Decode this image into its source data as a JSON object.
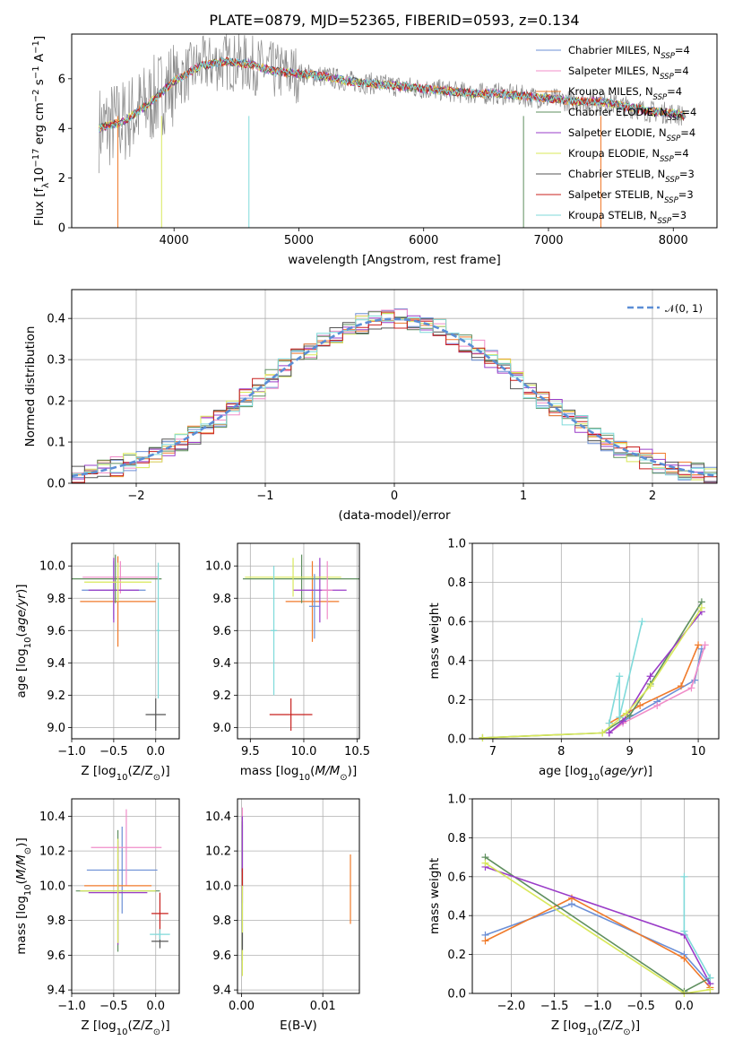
{
  "page": {
    "title": "PLATE=0879, MJD=52365, FIBERID=0593, z=0.134"
  },
  "chart_data": [
    {
      "id": "spectrum",
      "type": "line",
      "xlabel": "wavelength [Angstrom, rest frame]",
      "ylabel": "Flux [f_λ 10^-17 erg cm^-2 s^-1 A^-1]",
      "xlim": [
        3180,
        8350
      ],
      "ylim": [
        0,
        7.8
      ],
      "xticks": [
        4000,
        5000,
        6000,
        7000,
        8000
      ],
      "yticks": [
        0,
        2,
        4,
        6
      ],
      "grid": false,
      "legend_position": "right",
      "series": [
        {
          "name": "Chabrier MILES, N_SSP=4",
          "color": "#6b8fd6"
        },
        {
          "name": "Salpeter MILES, N_SSP=4",
          "color": "#f08cc8"
        },
        {
          "name": "Kroupa MILES, N_SSP=4",
          "color": "#f07a2a"
        },
        {
          "name": "Chabrier ELODIE, N_SSP=4",
          "color": "#5f8f5f"
        },
        {
          "name": "Salpeter ELODIE, N_SSP=4",
          "color": "#9a3cc8"
        },
        {
          "name": "Kroupa ELODIE, N_SSP=4",
          "color": "#d8e85a"
        },
        {
          "name": "Chabrier STELIB, N_SSP=3",
          "color": "#555555"
        },
        {
          "name": "Salpeter STELIB, N_SSP=3",
          "color": "#c8201e"
        },
        {
          "name": "Kroupa STELIB, N_SSP=3",
          "color": "#7fdada"
        }
      ],
      "approx_model": {
        "x": [
          3400,
          3600,
          3800,
          4000,
          4200,
          4400,
          4600,
          4800,
          5000,
          5200,
          5400,
          5600,
          5800,
          6000,
          6200,
          6400,
          6600,
          6800,
          7000,
          7200,
          7400,
          7600,
          7800,
          8000,
          8100
        ],
        "y": [
          4.0,
          4.3,
          5.0,
          5.9,
          6.5,
          6.7,
          6.6,
          6.3,
          6.2,
          6.1,
          5.9,
          5.8,
          5.7,
          5.6,
          5.5,
          5.4,
          5.4,
          5.3,
          5.2,
          5.1,
          5.1,
          4.9,
          4.7,
          4.6,
          4.5
        ]
      }
    },
    {
      "id": "residuals",
      "type": "line",
      "xlabel": "(data-model)/error",
      "ylabel": "Normed distribution",
      "xlim": [
        -2.5,
        2.5
      ],
      "ylim": [
        0,
        0.47
      ],
      "xticks": [
        -2,
        -1,
        0,
        1,
        2
      ],
      "yticks": [
        0.0,
        0.1,
        0.2,
        0.3,
        0.4
      ],
      "grid": true,
      "legend_position": "top-right",
      "legend": [
        "𝒩(0, 1)"
      ],
      "normal_color": "#5b8ed6"
    },
    {
      "id": "age_vs_Z",
      "type": "scatter",
      "xlabel": "Z [log10(Z/Z☉)]",
      "ylabel": "age [log10(age/yr)]",
      "xlim": [
        -1.0,
        0.28
      ],
      "ylim": [
        8.93,
        10.14
      ],
      "xticks": [
        -1.0,
        -0.5,
        0.0
      ],
      "yticks": [
        9.0,
        9.2,
        9.4,
        9.6,
        9.8,
        10.0
      ],
      "grid": true,
      "points": [
        {
          "x": -0.5,
          "y": 9.85,
          "xerr": 0.38,
          "yerr": 0.18,
          "series": 0
        },
        {
          "x": -0.42,
          "y": 9.93,
          "xerr": 0.45,
          "yerr": 0.1,
          "series": 1
        },
        {
          "x": -0.45,
          "y": 9.78,
          "xerr": 0.45,
          "yerr": 0.28,
          "series": 2
        },
        {
          "x": -0.48,
          "y": 9.92,
          "xerr": 0.55,
          "yerr": 0.15,
          "series": 3
        },
        {
          "x": -0.5,
          "y": 9.85,
          "xerr": 0.3,
          "yerr": 0.2,
          "series": 4
        },
        {
          "x": -0.45,
          "y": 9.9,
          "xerr": 0.4,
          "yerr": 0.12,
          "series": 5
        },
        {
          "x": 0.0,
          "y": 9.08,
          "xerr": 0.12,
          "yerr": 0.1,
          "series": 6
        },
        {
          "x": 0.03,
          "y": 9.6,
          "xerr": 0.02,
          "yerr": 0.42,
          "series": 8
        }
      ]
    },
    {
      "id": "age_vs_mass",
      "type": "scatter",
      "xlabel": "mass [log10(M/M☉)]",
      "ylabel": "",
      "xlim": [
        9.38,
        10.52
      ],
      "ylim": [
        8.93,
        10.14
      ],
      "xticks": [
        9.5,
        10.0,
        10.5
      ],
      "yticks": [
        9.0,
        9.2,
        9.4,
        9.6,
        9.8,
        10.0
      ],
      "grid": true,
      "points": [
        {
          "x": 10.08,
          "y": 9.78,
          "xerr": 0.25,
          "yerr": 0.25,
          "series": 2
        },
        {
          "x": 9.98,
          "y": 9.92,
          "xerr": 0.55,
          "yerr": 0.15,
          "series": 3
        },
        {
          "x": 10.15,
          "y": 9.85,
          "xerr": 0.25,
          "yerr": 0.2,
          "series": 4
        },
        {
          "x": 9.9,
          "y": 9.93,
          "xerr": 0.45,
          "yerr": 0.12,
          "series": 5
        },
        {
          "x": 9.88,
          "y": 9.08,
          "xerr": 0.2,
          "yerr": 0.1,
          "series": 7
        },
        {
          "x": 9.72,
          "y": 9.6,
          "xerr": 0.03,
          "yerr": 0.4,
          "series": 8
        },
        {
          "x": 10.22,
          "y": 9.85,
          "xerr": 0.05,
          "yerr": 0.18,
          "series": 1
        },
        {
          "x": 10.1,
          "y": 9.75,
          "xerr": 0.05,
          "yerr": 0.2,
          "series": 0
        }
      ]
    },
    {
      "id": "massweight_vs_age",
      "type": "line",
      "xlabel": "age [log10(age/yr)]",
      "ylabel": "mass weight",
      "xlim": [
        6.7,
        10.3
      ],
      "ylim": [
        0.0,
        1.0
      ],
      "xticks": [
        7,
        8,
        9,
        10
      ],
      "yticks": [
        0.0,
        0.2,
        0.4,
        0.6,
        0.8,
        1.0
      ],
      "grid": true,
      "series": [
        {
          "series": 0,
          "x": [
            8.7,
            8.9,
            9.4,
            9.95,
            10.05
          ],
          "y": [
            0.03,
            0.09,
            0.19,
            0.3,
            0.46
          ]
        },
        {
          "series": 1,
          "x": [
            8.7,
            8.9,
            9.4,
            9.9,
            10.1
          ],
          "y": [
            0.03,
            0.08,
            0.17,
            0.26,
            0.48
          ]
        },
        {
          "series": 2,
          "x": [
            8.7,
            9.15,
            9.75,
            10.0
          ],
          "y": [
            0.08,
            0.17,
            0.27,
            0.48
          ]
        },
        {
          "series": 3,
          "x": [
            6.85,
            8.6,
            9.0,
            9.3,
            10.05
          ],
          "y": [
            0.005,
            0.03,
            0.12,
            0.28,
            0.7
          ]
        },
        {
          "series": 4,
          "x": [
            8.7,
            8.9,
            9.3,
            10.05
          ],
          "y": [
            0.03,
            0.09,
            0.32,
            0.65
          ]
        },
        {
          "series": 5,
          "x": [
            6.85,
            8.6,
            8.95,
            9.3,
            10.05
          ],
          "y": [
            0.005,
            0.03,
            0.13,
            0.27,
            0.67
          ]
        },
        {
          "series": 8,
          "x": [
            8.7,
            8.85,
            8.85,
            9.18
          ],
          "y": [
            0.08,
            0.32,
            0.11,
            0.6
          ]
        }
      ]
    },
    {
      "id": "mass_vs_Z",
      "type": "scatter",
      "xlabel": "Z [log10(Z/Z☉)]",
      "ylabel": "mass [log10(M/M☉)]",
      "xlim": [
        -1.0,
        0.28
      ],
      "ylim": [
        9.38,
        10.5
      ],
      "xticks": [
        -1.0,
        -0.5,
        0.0
      ],
      "yticks": [
        9.4,
        9.6,
        9.8,
        10.0,
        10.2,
        10.4
      ],
      "grid": true,
      "points": [
        {
          "x": -0.4,
          "y": 10.09,
          "xerr": 0.42,
          "yerr": 0.25,
          "series": 0
        },
        {
          "x": -0.35,
          "y": 10.22,
          "xerr": 0.42,
          "yerr": 0.22,
          "series": 1
        },
        {
          "x": -0.45,
          "y": 10.0,
          "xerr": 0.4,
          "yerr": 0.15,
          "series": 2
        },
        {
          "x": -0.45,
          "y": 9.97,
          "xerr": 0.5,
          "yerr": 0.35,
          "series": 3
        },
        {
          "x": -0.45,
          "y": 9.96,
          "xerr": 0.35,
          "yerr": 0.3,
          "series": 4
        },
        {
          "x": -0.45,
          "y": 9.97,
          "xerr": 0.45,
          "yerr": 0.3,
          "series": 5
        },
        {
          "x": 0.05,
          "y": 9.68,
          "xerr": 0.1,
          "yerr": 0.04,
          "series": 6
        },
        {
          "x": 0.05,
          "y": 9.84,
          "xerr": 0.1,
          "yerr": 0.12,
          "series": 7
        },
        {
          "x": 0.05,
          "y": 9.72,
          "xerr": 0.12,
          "yerr": 0.03,
          "series": 8
        }
      ]
    },
    {
      "id": "mass_vs_EBV",
      "type": "scatter",
      "xlabel": "E(B-V)",
      "ylabel": "",
      "xlim": [
        -0.0005,
        0.0145
      ],
      "ylim": [
        9.38,
        10.5
      ],
      "xticks": [
        0.0,
        0.01
      ],
      "yticks": [
        9.4,
        9.6,
        9.8,
        10.0,
        10.2,
        10.4
      ],
      "grid": true,
      "points": [
        {
          "x": 0.0001,
          "y": 10.0,
          "yerr": 0.35,
          "series": 0
        },
        {
          "x": 0.0001,
          "y": 10.2,
          "yerr": 0.25,
          "series": 1
        },
        {
          "x": 0.0134,
          "y": 9.98,
          "yerr": 0.2,
          "series": 2
        },
        {
          "x": 0.0001,
          "y": 9.97,
          "yerr": 0.4,
          "series": 3
        },
        {
          "x": 0.0001,
          "y": 10.15,
          "yerr": 0.25,
          "series": 4
        },
        {
          "x": 0.0001,
          "y": 9.78,
          "yerr": 0.3,
          "series": 5
        },
        {
          "x": 0.0001,
          "y": 9.68,
          "yerr": 0.05,
          "series": 6
        },
        {
          "x": 0.0001,
          "y": 10.05,
          "yerr": 0.05,
          "series": 7
        }
      ]
    },
    {
      "id": "massweight_vs_Z",
      "type": "line",
      "xlabel": "Z [log10(Z/Z☉)]",
      "ylabel": "mass weight",
      "xlim": [
        -2.45,
        0.4
      ],
      "ylim": [
        0.0,
        1.0
      ],
      "xticks": [
        -2.0,
        -1.5,
        -1.0,
        -0.5,
        0.0
      ],
      "yticks": [
        0.0,
        0.2,
        0.4,
        0.6,
        0.8,
        1.0
      ],
      "grid": true,
      "series": [
        {
          "series": 0,
          "x": [
            -2.3,
            -1.3,
            0.0,
            0.3
          ],
          "y": [
            0.3,
            0.46,
            0.2,
            0.05
          ]
        },
        {
          "series": 2,
          "x": [
            -2.3,
            -1.3,
            0.0,
            0.3
          ],
          "y": [
            0.27,
            0.49,
            0.18,
            0.03
          ]
        },
        {
          "series": 3,
          "x": [
            -2.3,
            0.0,
            0.3
          ],
          "y": [
            0.7,
            0.01,
            0.08
          ]
        },
        {
          "series": 4,
          "x": [
            -2.3,
            0.0,
            0.3
          ],
          "y": [
            0.65,
            0.3,
            0.05
          ]
        },
        {
          "series": 5,
          "x": [
            -2.3,
            0.0,
            0.3
          ],
          "y": [
            0.67,
            0.0,
            0.02
          ]
        },
        {
          "series": 8,
          "x": [
            0.0,
            0.0,
            0.3
          ],
          "y": [
            0.6,
            0.32,
            0.08
          ]
        }
      ]
    }
  ]
}
